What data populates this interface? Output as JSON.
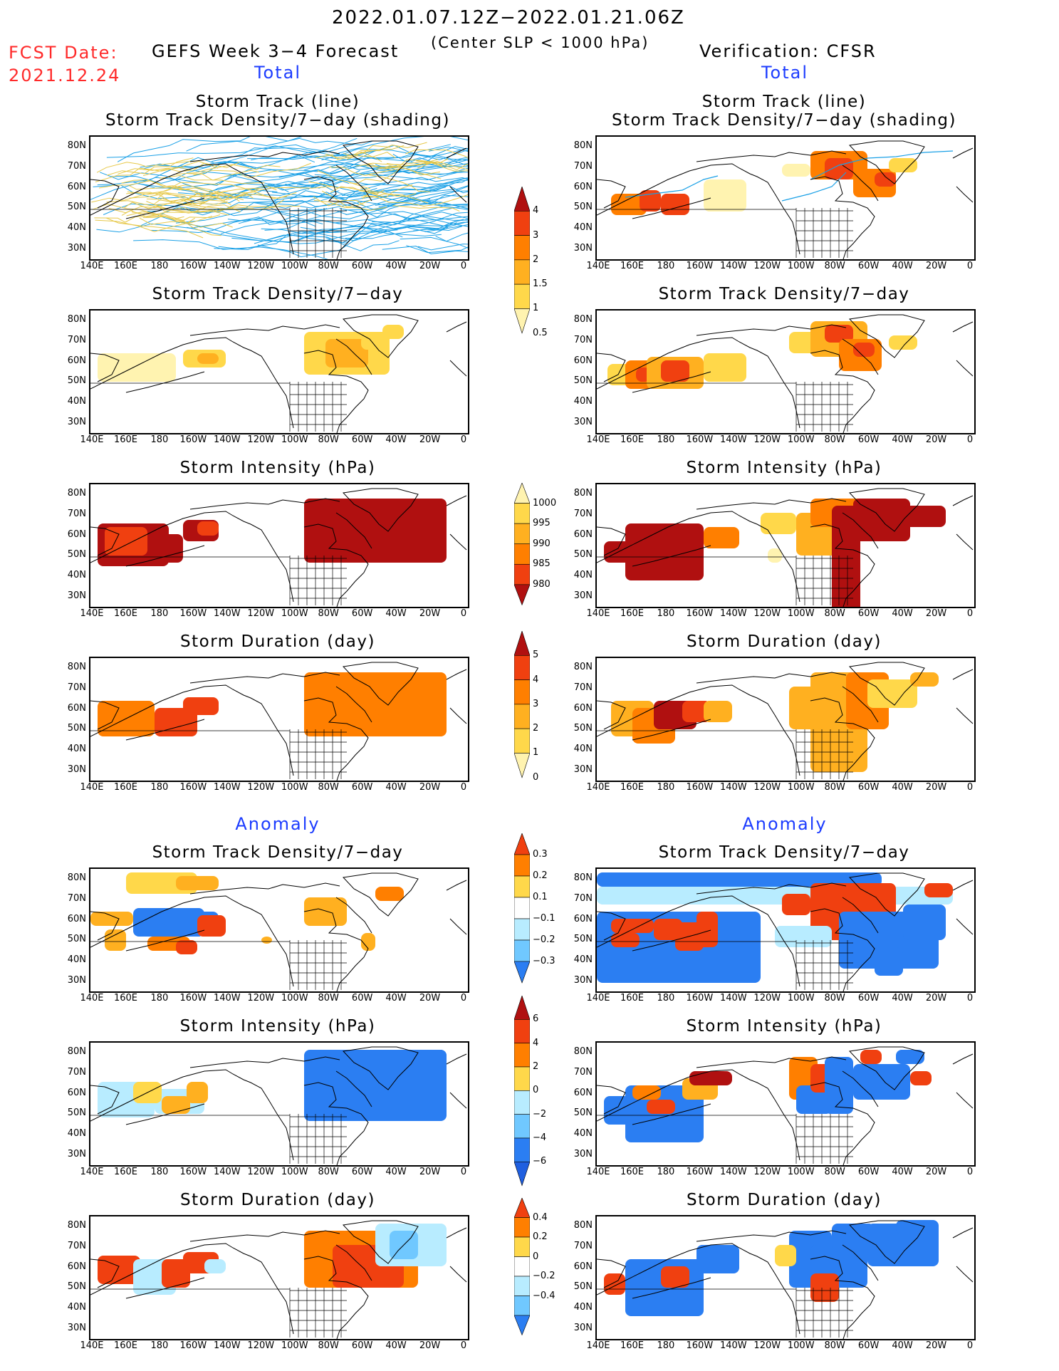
{
  "header": {
    "date_range": "2022.01.07.12Z−2022.01.21.06Z",
    "fcst_label": "FCST Date:",
    "fcst_date": "2021.12.24",
    "forecast_title": "GEFS Week 3−4 Forecast",
    "criterion": "(Center SLP < 1000 hPa)",
    "verification_title": "Verification: CFSR"
  },
  "sections": {
    "total_left": "Total",
    "total_right": "Total",
    "anomaly_left": "Anomaly",
    "anomaly_right": "Anomaly"
  },
  "panel_titles": {
    "track_line": "Storm Track (line)",
    "track_density_shading": "Storm Track Density/7−day (shading)",
    "track_density": "Storm Track Density/7−day",
    "intensity": "Storm Intensity (hPa)",
    "duration": "Storm Duration (day)"
  },
  "axes": {
    "lat_labels": [
      "80N",
      "70N",
      "60N",
      "50N",
      "40N",
      "30N"
    ],
    "lon_labels": [
      "140E",
      "160E",
      "180",
      "160W",
      "140W",
      "120W",
      "100W",
      "80W",
      "60W",
      "40W",
      "20W",
      "0"
    ]
  },
  "colorbars": {
    "density_total": [
      "4",
      "3",
      "2",
      "1.5",
      "1",
      "0.5"
    ],
    "intensity_total": [
      "1000",
      "995",
      "990",
      "985",
      "980"
    ],
    "duration_total": [
      "5",
      "4",
      "3",
      "2",
      "1",
      "0"
    ],
    "density_anomaly": [
      "0.3",
      "0.2",
      "0.1",
      "−0.1",
      "−0.2",
      "−0.3"
    ],
    "intensity_anomaly": [
      "6",
      "4",
      "2",
      "0",
      "−2",
      "−4",
      "−6"
    ],
    "duration_anomaly": [
      "0.4",
      "0.2",
      "0",
      "−0.2",
      "−0.4"
    ]
  },
  "colors": {
    "yellow_light": "#fff3b0",
    "yellow": "#ffd84a",
    "orange_light": "#ffb020",
    "orange": "#ff7f00",
    "red_orange": "#f04010",
    "dark_red": "#b01010",
    "cyan_light": "#b8ecff",
    "blue_light": "#70c8ff",
    "blue": "#2b7ef2",
    "track_line": "#1aa0e6"
  }
}
